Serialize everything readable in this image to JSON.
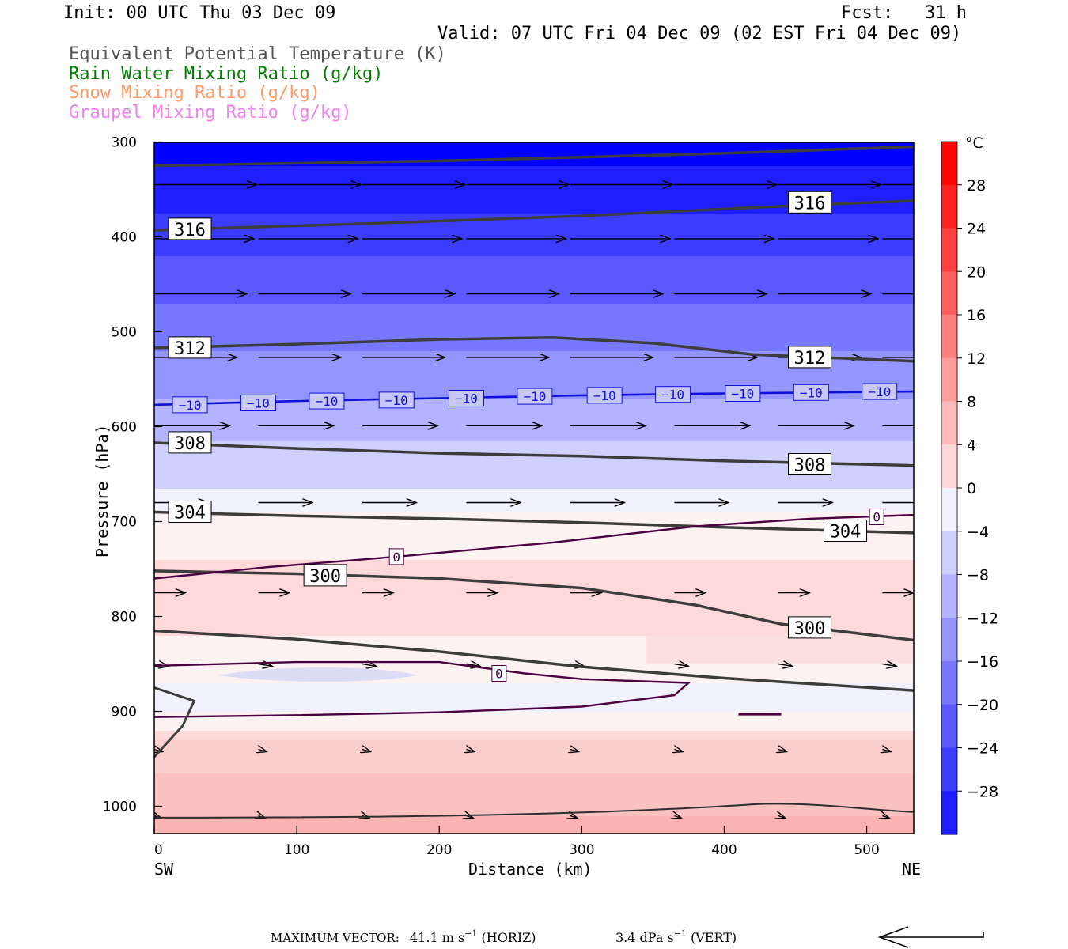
{
  "header": {
    "init": "Init: 00 UTC Thu 03 Dec 09",
    "fcst": "Fcst:   31 h",
    "valid": "Valid: 07 UTC Fri 04 Dec 09 (02 EST Fri 04 Dec 09)"
  },
  "legend": {
    "items": [
      {
        "label": "Equivalent Potential Temperature (K)",
        "color": "#555555"
      },
      {
        "label": "Rain Water Mixing Ratio (g/kg)",
        "color": "#008000"
      },
      {
        "label": "Snow Mixing Ratio (g/kg)",
        "color": "#ff9966"
      },
      {
        "label": "Graupel Mixing Ratio (g/kg)",
        "color": "#ee82ee"
      }
    ]
  },
  "chart_data": {
    "type": "contour-cross-section",
    "xlabel": "Distance (km)",
    "ylabel": "Pressure (hPa)",
    "xlim": [
      0,
      533
    ],
    "ylim": [
      1030,
      300
    ],
    "x_ticks": [
      0,
      100,
      200,
      300,
      400,
      500
    ],
    "y_ticks": [
      300,
      400,
      500,
      600,
      700,
      800,
      900,
      1000
    ],
    "left_end_label": "SW",
    "right_end_label": "NE",
    "theta_e_contours": [
      {
        "value": 316,
        "label": "",
        "points": [
          [
            0,
            325
          ],
          [
            200,
            320
          ],
          [
            400,
            312
          ],
          [
            533,
            305
          ]
        ]
      },
      {
        "value": 316,
        "label": "316",
        "label_positions": [
          [
            25,
            392
          ],
          [
            460,
            364
          ]
        ],
        "points": [
          [
            0,
            393
          ],
          [
            150,
            386
          ],
          [
            300,
            378
          ],
          [
            450,
            367
          ],
          [
            533,
            362
          ]
        ]
      },
      {
        "value": 312,
        "label": "312",
        "label_positions": [
          [
            25,
            517
          ],
          [
            460,
            527
          ]
        ],
        "points": [
          [
            0,
            517
          ],
          [
            100,
            513
          ],
          [
            200,
            508
          ],
          [
            280,
            506
          ],
          [
            350,
            512
          ],
          [
            420,
            524
          ],
          [
            533,
            531
          ]
        ]
      },
      {
        "value": 308,
        "label": "308",
        "label_positions": [
          [
            25,
            617
          ],
          [
            460,
            640
          ]
        ],
        "points": [
          [
            0,
            617
          ],
          [
            100,
            623
          ],
          [
            200,
            628
          ],
          [
            300,
            631
          ],
          [
            400,
            636
          ],
          [
            533,
            641
          ]
        ]
      },
      {
        "value": 304,
        "label": "304",
        "label_positions": [
          [
            25,
            690
          ],
          [
            485,
            710
          ]
        ],
        "points": [
          [
            0,
            690
          ],
          [
            100,
            694
          ],
          [
            200,
            697
          ],
          [
            300,
            701
          ],
          [
            400,
            706
          ],
          [
            533,
            712
          ]
        ]
      },
      {
        "value": 300,
        "label": "300",
        "label_positions": [
          [
            120,
            757
          ],
          [
            460,
            812
          ]
        ],
        "points": [
          [
            0,
            752
          ],
          [
            100,
            755
          ],
          [
            200,
            760
          ],
          [
            300,
            770
          ],
          [
            380,
            788
          ],
          [
            440,
            808
          ],
          [
            533,
            825
          ]
        ]
      },
      {
        "value": 296,
        "label": "",
        "points": [
          [
            0,
            815
          ],
          [
            100,
            824
          ],
          [
            200,
            837
          ],
          [
            300,
            853
          ],
          [
            400,
            865
          ],
          [
            533,
            878
          ]
        ]
      }
    ],
    "temperature_contours": [
      {
        "value": -10,
        "label": "−10",
        "color": "#1010dd",
        "label_positions": [
          [
            25,
            577
          ],
          [
            73,
            575
          ],
          [
            121,
            573
          ],
          [
            170,
            572
          ],
          [
            219,
            570
          ],
          [
            267,
            568
          ],
          [
            316,
            567
          ],
          [
            364,
            566
          ],
          [
            413,
            565
          ],
          [
            461,
            564
          ],
          [
            509,
            563
          ]
        ],
        "points": [
          [
            0,
            577
          ],
          [
            100,
            573
          ],
          [
            200,
            570
          ],
          [
            300,
            567
          ],
          [
            400,
            565
          ],
          [
            533,
            563
          ]
        ]
      },
      {
        "value": 0,
        "label": "0",
        "color": "#4a0040",
        "label_positions": [
          [
            170,
            737
          ],
          [
            507,
            695
          ]
        ],
        "points": [
          [
            0,
            760
          ],
          [
            80,
            748
          ],
          [
            170,
            737
          ],
          [
            280,
            722
          ],
          [
            380,
            705
          ],
          [
            460,
            697
          ],
          [
            533,
            693
          ]
        ]
      },
      {
        "value": 0,
        "label": "0",
        "color": "#4a0040",
        "label_positions": [
          [
            242,
            860
          ]
        ],
        "points": [
          [
            0,
            852
          ],
          [
            100,
            848
          ],
          [
            200,
            848
          ],
          [
            260,
            860
          ],
          [
            300,
            866
          ],
          [
            375,
            870
          ],
          [
            365,
            883
          ],
          [
            300,
            895
          ],
          [
            200,
            901
          ],
          [
            100,
            904
          ],
          [
            0,
            906
          ]
        ]
      }
    ],
    "colorbar": {
      "unit": "°C",
      "range": [
        -32,
        32
      ],
      "tick_labels": [
        "28",
        "24",
        "20",
        "16",
        "12",
        "8",
        "4",
        "0",
        "−4",
        "−8",
        "−12",
        "−16",
        "−20",
        "−24",
        "−28"
      ],
      "tick_values": [
        28,
        24,
        20,
        16,
        12,
        8,
        4,
        0,
        -4,
        -8,
        -12,
        -16,
        -20,
        -24,
        -28
      ],
      "cold_color": "#0000ff",
      "warm_color": "#ff0000"
    }
  },
  "footer": {
    "max_vector_label": "MAXIMUM VECTOR:",
    "horiz_value": "41.1 m s",
    "horiz_exp": "−1",
    "horiz_tag": " (HORIZ)",
    "vert_value": "3.4 dPa s",
    "vert_exp": "−1",
    "vert_tag": " (VERT)"
  }
}
